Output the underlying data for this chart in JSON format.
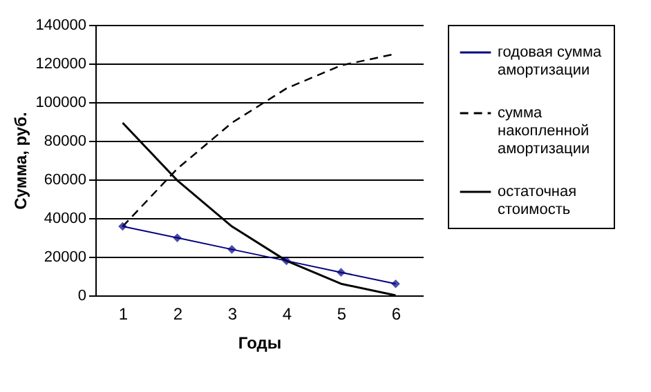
{
  "chart_data": {
    "type": "line",
    "xlabel": "Годы",
    "ylabel": "Сумма, руб.",
    "categories": [
      "1",
      "2",
      "3",
      "4",
      "5",
      "6"
    ],
    "ylim": [
      0,
      140000
    ],
    "yticks": [
      0,
      20000,
      40000,
      60000,
      80000,
      100000,
      120000,
      140000
    ],
    "grid": "y",
    "legend": "right",
    "series": [
      {
        "name": "годовая сумма амортизации",
        "color": "#000080",
        "marker": "diamond",
        "line_style": "solid",
        "values": [
          35700,
          29800,
          23800,
          17900,
          11900,
          6000
        ]
      },
      {
        "name": "сумма накопленной амортизации",
        "color": "#000000",
        "marker": "none",
        "line_style": "dashed",
        "values": [
          35700,
          65500,
          89300,
          107100,
          119000,
          125000
        ]
      },
      {
        "name": "остаточная стоимость",
        "color": "#000000",
        "marker": "none",
        "line_style": "solid",
        "values": [
          89300,
          59500,
          35700,
          17900,
          6000,
          0
        ]
      }
    ]
  }
}
